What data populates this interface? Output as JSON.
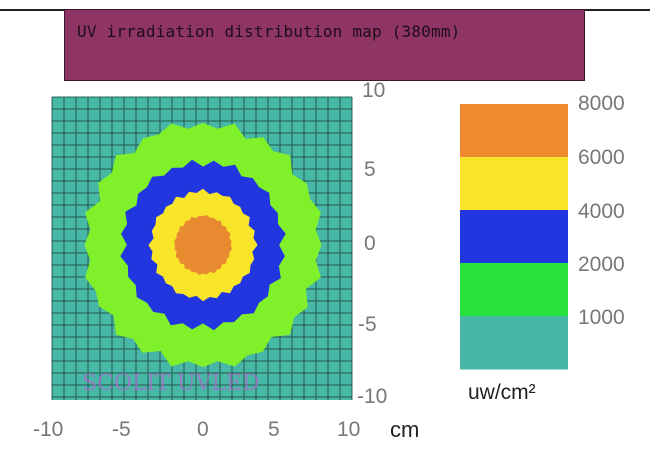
{
  "chart_data": {
    "type": "heatmap",
    "title": "UV irradiation distribution map (380mm)",
    "x_unit": "cm",
    "x_ticks": [
      "-10",
      "-5",
      "0",
      "5",
      "10"
    ],
    "y_ticks": [
      "10",
      "5",
      "0",
      "-5",
      "-10"
    ],
    "xlim": [
      -10,
      10
    ],
    "ylim": [
      -10,
      10
    ],
    "grid": true,
    "colorbar": {
      "unit": "uw/cm²",
      "position": "right",
      "tick_labels": [
        "8000",
        "6000",
        "4000",
        "2000",
        "1000"
      ],
      "bands": [
        {
          "from": 6000,
          "to": 8000,
          "color": "#f08a30"
        },
        {
          "from": 4000,
          "to": 6000,
          "color": "#f8e52a"
        },
        {
          "from": 2000,
          "to": 4000,
          "color": "#2236e0"
        },
        {
          "from": 1000,
          "to": 2000,
          "color": "#28e33a"
        },
        {
          "from": 0,
          "to": 1000,
          "color": "#48b8a6"
        }
      ]
    },
    "contour_levels": [
      {
        "level": 1000,
        "approx_radius_cm": 7.9,
        "color": "#7ff02a"
      },
      {
        "level": 2000,
        "approx_radius_cm": 5.4,
        "color": "#2236e0"
      },
      {
        "level": 4000,
        "approx_radius_cm": 3.5,
        "color": "#f8e52a"
      },
      {
        "level": 6000,
        "approx_radius_cm": 1.9,
        "color": "#e88a30"
      }
    ],
    "background_color": "#48b8a6",
    "watermark": "SCOLIT   UVLED"
  }
}
